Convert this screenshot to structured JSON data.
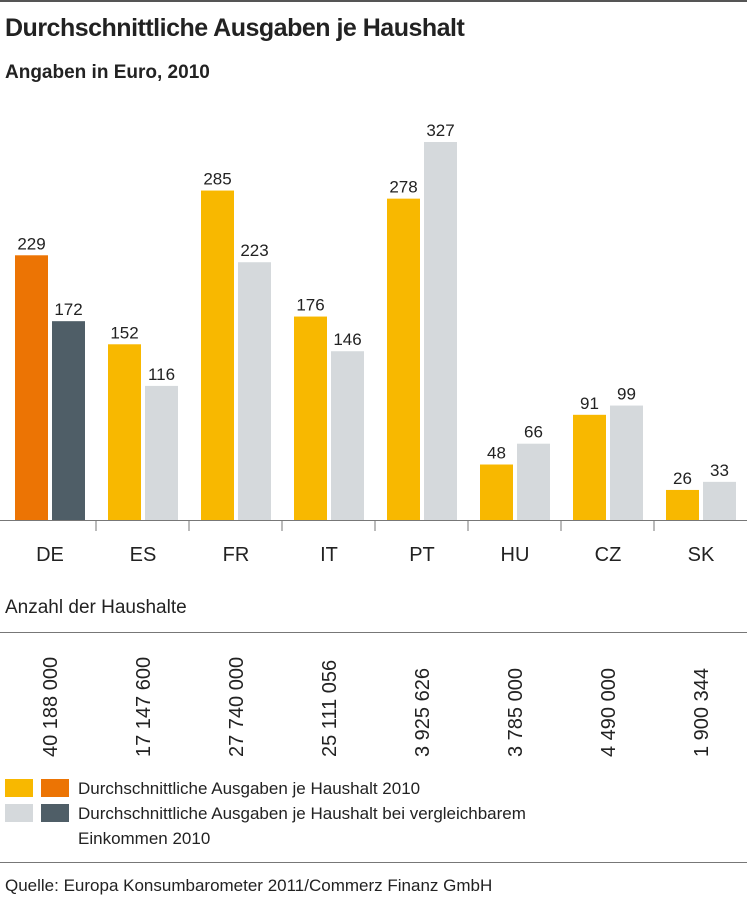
{
  "chart_data": {
    "type": "bar",
    "title": "Durchschnittliche Ausgaben je Haushalt",
    "subtitle": "Angaben in Euro, 2010",
    "categories": [
      "DE",
      "ES",
      "FR",
      "IT",
      "PT",
      "HU",
      "CZ",
      "SK"
    ],
    "series": [
      {
        "name": "Durchschnittliche Ausgaben je Haushalt 2010",
        "values": [
          229,
          152,
          285,
          176,
          278,
          48,
          91,
          26
        ]
      },
      {
        "name": "Durchschnittliche Ausgaben je Haushalt bei vergleichbarem Einkommen 2010",
        "values": [
          172,
          116,
          223,
          146,
          327,
          66,
          99,
          33
        ]
      }
    ],
    "ylim": [
      0,
      327
    ],
    "grid": false,
    "legend": "bottom",
    "colors": {
      "series1": "#f8b800",
      "series2": "#d5d9dc",
      "series1_highlight": "#ec7404",
      "series2_highlight": "#4f5e67"
    },
    "highlight_category": "DE"
  },
  "households": {
    "label": "Anzahl der Haushalte",
    "values": [
      "40 188 000",
      "17 147 600",
      "27 740 000",
      "25 111 056",
      "3 925 626",
      "3 785 000",
      "4 490 000",
      "1 900 344"
    ]
  },
  "legend": {
    "item1": "Durchschnittliche Ausgaben je Haushalt 2010",
    "item2_line1": "Durchschnittliche Ausgaben je Haushalt bei vergleichbarem",
    "item2_line2": "Einkommen 2010"
  },
  "source": "Quelle: Europa Konsumbarometer 2011/Commerz Finanz GmbH"
}
